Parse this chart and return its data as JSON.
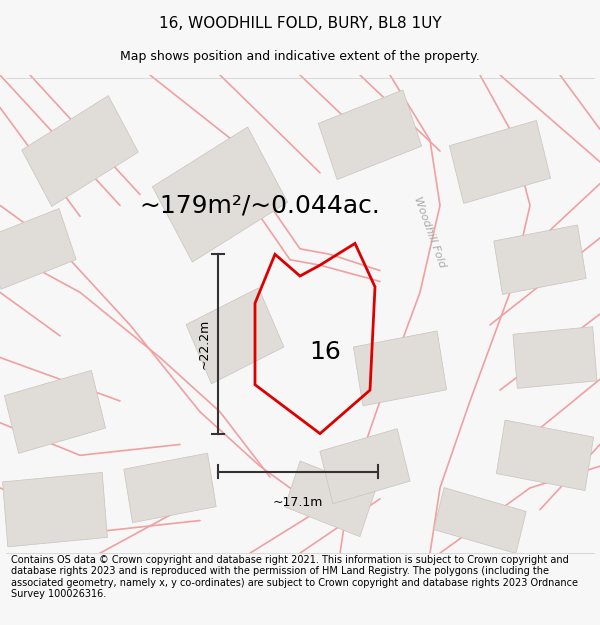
{
  "title": "16, WOODHILL FOLD, BURY, BL8 1UY",
  "subtitle": "Map shows position and indicative extent of the property.",
  "area_text": "~179m²/~0.044ac.",
  "dim_h": "~17.1m",
  "dim_v": "~22.2m",
  "label_16": "16",
  "road_label": "Woodhill Fold",
  "footer": "Contains OS data © Crown copyright and database right 2021. This information is subject to Crown copyright and database rights 2023 and is reproduced with the permission of HM Land Registry. The polygons (including the associated geometry, namely x, y co-ordinates) are subject to Crown copyright and database rights 2023 Ordnance Survey 100026316.",
  "bg_color": "#f7f7f7",
  "map_bg": "#f2f0ee",
  "building_fill": "#e0ddd8",
  "building_edge": "#c8c4be",
  "road_color": "#f0a0a0",
  "road_lw": 1.2,
  "property_color": "#dd0000",
  "property_lw": 2.0,
  "dim_color": "#333333",
  "title_fontsize": 11,
  "subtitle_fontsize": 9,
  "area_fontsize": 18,
  "label_fontsize": 18,
  "footer_fontsize": 7.0
}
